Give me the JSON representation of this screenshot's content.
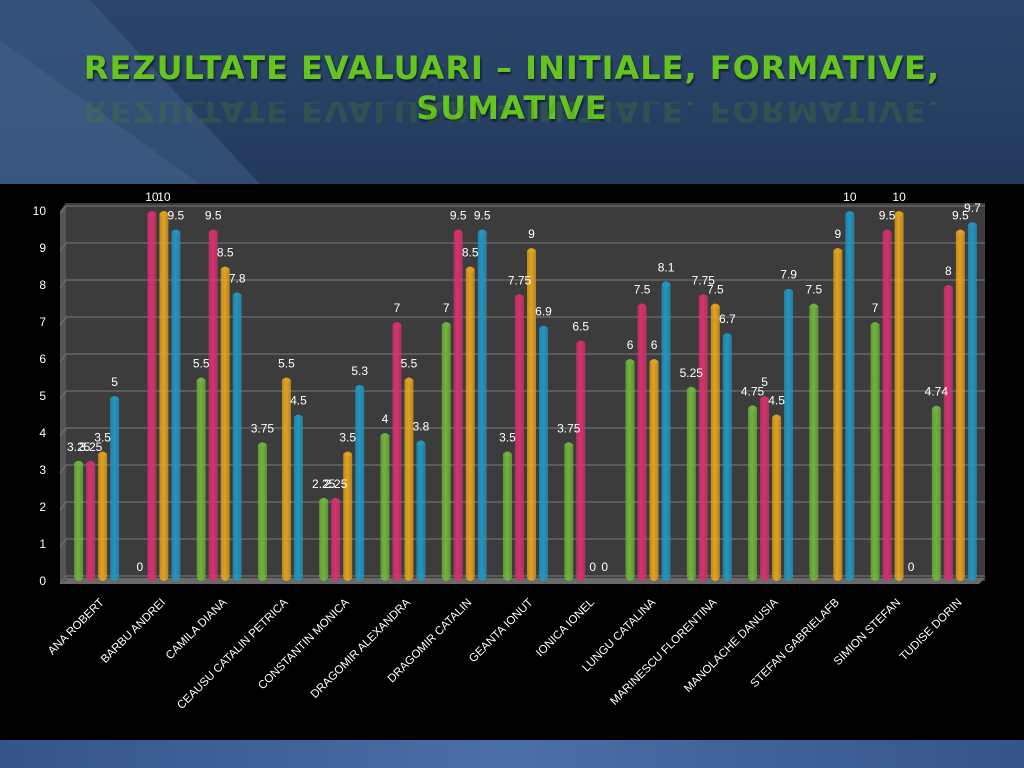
{
  "title": "REZULTATE EVALUARI – INITIALE, FORMATIVE, SUMATIVE",
  "colors": {
    "background": "#000000",
    "header": "#2c466c",
    "title": "#66c41f",
    "series": [
      "#6fb43a",
      "#d6316e",
      "#e3a21d",
      "#2196c0"
    ]
  },
  "chart_data": {
    "type": "bar",
    "categories": [
      "ANA ROBERT",
      "BARBU ANDREI",
      "CAMILA DIANA",
      "CEAUSU CATALIN PETRICA",
      "CONSTANTIN MONICA",
      "DRAGOMIR ALEXANDRA",
      "DRAGOMIR CATALIN",
      "GEANTA IONUT",
      "IONICA IONEL",
      "LUNGU CATALINA",
      "MARINESCU FLORENTINA",
      "MANOLACHE DANUSIA",
      "STEFAN GABRIELAFB",
      "SIMION STEFAN",
      "TUDISE DORIN"
    ],
    "series": [
      {
        "values": [
          3.25,
          0,
          5.5,
          3.75,
          2.25,
          4,
          7,
          3.5,
          3.75,
          6,
          5.25,
          4.75,
          7.5,
          7,
          4.74
        ]
      },
      {
        "values": [
          3.25,
          10,
          9.5,
          0,
          2.25,
          7,
          9.5,
          7.75,
          6.5,
          7.5,
          7.75,
          5,
          0,
          9.5,
          8
        ]
      },
      {
        "values": [
          3.5,
          10,
          8.5,
          5.5,
          3.5,
          5.5,
          8.5,
          9,
          0,
          6,
          7.5,
          4.5,
          9,
          10,
          9.5
        ]
      },
      {
        "values": [
          5,
          9.5,
          7.8,
          4.5,
          5.3,
          3.8,
          9.5,
          6.9,
          0,
          8.1,
          6.7,
          7.9,
          10,
          0,
          9.7
        ]
      }
    ],
    "data_labels": [
      [
        "3.25",
        "0",
        "5.5",
        "3.75",
        "2.25",
        "4",
        "7",
        "3.5",
        "3.75",
        "6",
        "5.25",
        "4.75",
        "7.5",
        "7",
        "4.74"
      ],
      [
        "3.25",
        "10",
        "9.5",
        "",
        "2.25",
        "7",
        "9.5",
        "7.75",
        "6.5",
        "7.5",
        "7.75",
        "5",
        "",
        "9.5",
        "8"
      ],
      [
        "3.5",
        "10",
        "8.5",
        "5.5",
        "3.5",
        "5.5",
        "8.5",
        "9",
        "0",
        "6",
        "7.5",
        "4.5",
        "9",
        "10",
        "9.5"
      ],
      [
        "5",
        "9.5",
        "7.8",
        "4.5",
        "5.3",
        "3.8",
        "9.5",
        "6.9",
        "0",
        "8.1",
        "6.7",
        "7.9",
        "10",
        "0",
        "9.7"
      ]
    ],
    "y_ticks": [
      "0",
      "1",
      "2",
      "3",
      "4",
      "5",
      "6",
      "7",
      "8",
      "9",
      "10"
    ],
    "ylim": [
      0,
      10
    ],
    "grid": true,
    "legend": "none"
  }
}
